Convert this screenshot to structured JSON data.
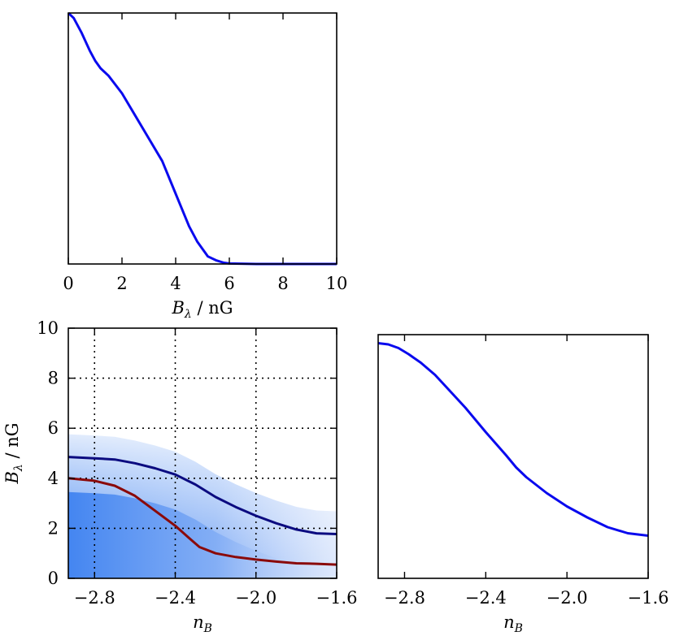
{
  "chart_data": [
    {
      "type": "line",
      "panel": "top-left",
      "xlabel": {
        "var": "B",
        "sub": "λ",
        "rest": " / nG"
      },
      "xlim": [
        0,
        10
      ],
      "x_ticks": [
        "0",
        "2",
        "4",
        "6",
        "8",
        "10"
      ],
      "x_tick_values": [
        0,
        2,
        4,
        6,
        8,
        10
      ],
      "ylim": [
        0,
        1
      ],
      "y_ticks_visible": false,
      "series": [
        {
          "color": "#0a0aee",
          "x": [
            0,
            0.2,
            0.5,
            0.8,
            1.0,
            1.2,
            1.5,
            2.0,
            2.5,
            3.0,
            3.5,
            4.0,
            4.5,
            4.8,
            5.0,
            5.2,
            5.5,
            5.8,
            6.0,
            7.0,
            8.0,
            10.0
          ],
          "y": [
            1.0,
            0.98,
            0.92,
            0.85,
            0.81,
            0.78,
            0.75,
            0.68,
            0.59,
            0.5,
            0.41,
            0.28,
            0.15,
            0.09,
            0.06,
            0.03,
            0.015,
            0.005,
            0.002,
            0.0,
            0.0,
            0.0
          ]
        }
      ]
    },
    {
      "type": "line",
      "panel": "bottom-left",
      "xlabel": {
        "var": "n",
        "sub": "B",
        "rest": ""
      },
      "ylabel": {
        "var": "B",
        "sub": "λ",
        "rest": " / nG"
      },
      "xlim": [
        -2.93,
        -1.6
      ],
      "ylim": [
        0,
        10
      ],
      "x_ticks": [
        "−2.8",
        "−2.4",
        "−2.0",
        "−1.6"
      ],
      "x_tick_values": [
        -2.8,
        -2.4,
        -2.0,
        -1.6
      ],
      "y_ticks": [
        "0",
        "2",
        "4",
        "6",
        "8",
        "10"
      ],
      "y_tick_values": [
        0,
        2,
        4,
        6,
        8,
        10
      ],
      "grid": true,
      "background": "blue likelihood shading",
      "series": [
        {
          "color": "#0b0b80",
          "x": [
            -2.93,
            -2.8,
            -2.7,
            -2.6,
            -2.5,
            -2.4,
            -2.3,
            -2.2,
            -2.1,
            -2.0,
            -1.9,
            -1.8,
            -1.7,
            -1.6
          ],
          "y": [
            4.85,
            4.8,
            4.75,
            4.6,
            4.4,
            4.15,
            3.75,
            3.25,
            2.85,
            2.5,
            2.2,
            1.95,
            1.8,
            1.77
          ]
        },
        {
          "color": "#8a0a0a",
          "x": [
            -2.93,
            -2.8,
            -2.7,
            -2.6,
            -2.5,
            -2.4,
            -2.33,
            -2.28,
            -2.2,
            -2.1,
            -2.0,
            -1.9,
            -1.8,
            -1.7,
            -1.6
          ],
          "y": [
            4.0,
            3.9,
            3.7,
            3.3,
            2.7,
            2.1,
            1.6,
            1.25,
            1.0,
            0.85,
            0.75,
            0.67,
            0.6,
            0.58,
            0.55
          ]
        }
      ]
    },
    {
      "type": "line",
      "panel": "bottom-right",
      "xlabel": {
        "var": "n",
        "sub": "B",
        "rest": ""
      },
      "xlim": [
        -2.93,
        -1.6
      ],
      "ylim": [
        0,
        1
      ],
      "x_ticks": [
        "−2.8",
        "−2.4",
        "−2.0",
        "−1.6"
      ],
      "x_tick_values": [
        -2.8,
        -2.4,
        -2.0,
        -1.6
      ],
      "y_ticks_visible": false,
      "series": [
        {
          "color": "#0a0aee",
          "x": [
            -2.93,
            -2.88,
            -2.83,
            -2.78,
            -2.72,
            -2.65,
            -2.6,
            -2.5,
            -2.4,
            -2.3,
            -2.25,
            -2.2,
            -2.1,
            -2.0,
            -1.9,
            -1.8,
            -1.7,
            -1.6
          ],
          "y": [
            0.965,
            0.96,
            0.945,
            0.92,
            0.885,
            0.835,
            0.79,
            0.7,
            0.6,
            0.505,
            0.455,
            0.415,
            0.35,
            0.295,
            0.25,
            0.21,
            0.185,
            0.175
          ]
        }
      ]
    }
  ]
}
